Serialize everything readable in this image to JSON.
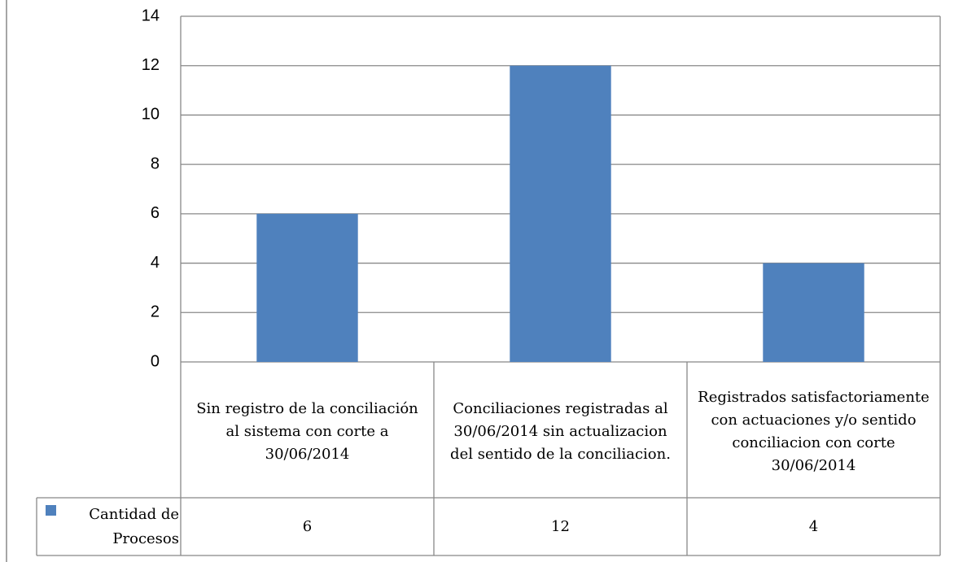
{
  "chart_data": {
    "type": "bar",
    "categories": [
      "Sin registro de la conciliación  al sistema con corte a 30/06/2014",
      "Conciliaciones registradas al 30/06/2014 sin actualizacion del sentido de la conciliacion.",
      "Registrados satisfactoriamente con actuaciones y/o sentido conciliacion con corte 30/06/2014"
    ],
    "series": [
      {
        "name": "Cantidad de Procesos",
        "color": "#4f81bd",
        "values": [
          6,
          12,
          4
        ]
      }
    ],
    "ylim": [
      0,
      14
    ],
    "yticks": [
      0,
      2,
      4,
      6,
      8,
      10,
      12,
      14
    ],
    "grid": true,
    "data_table": true
  }
}
